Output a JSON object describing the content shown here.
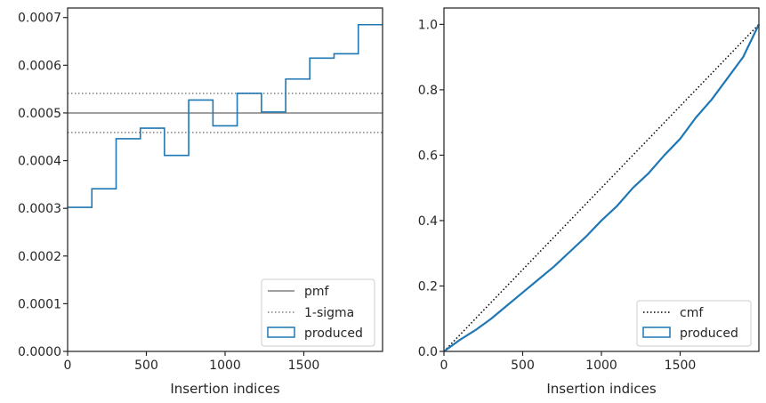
{
  "colors": {
    "series": "#1f77b4",
    "reference": "#808080",
    "cmf": "#000000",
    "axis": "#262626",
    "legend_border": "#cccccc"
  },
  "chart_data": [
    {
      "type": "step",
      "title": "",
      "xlabel": "Insertion indices",
      "ylabel": "",
      "xlim": [
        0,
        2000
      ],
      "ylim": [
        0,
        0.00072
      ],
      "xticks": [
        0,
        500,
        1000,
        1500
      ],
      "xtick_labels": [
        "0",
        "500",
        "1000",
        "1500"
      ],
      "yticks": [
        0,
        0.0001,
        0.0002,
        0.0003,
        0.0004,
        0.0005,
        0.0006,
        0.0007
      ],
      "ytick_labels": [
        "0.0000",
        "0.0001",
        "0.0002",
        "0.0003",
        "0.0004",
        "0.0005",
        "0.0006",
        "0.0007"
      ],
      "grid": false,
      "legend_position": "bottom-right",
      "bin_edges": [
        0,
        154,
        308,
        462,
        615,
        769,
        923,
        1077,
        1231,
        1385,
        1538,
        1692,
        1846,
        2000
      ],
      "produced": [
        0.000302,
        0.000341,
        0.000446,
        0.000468,
        0.000411,
        0.000527,
        0.000473,
        0.000541,
        0.000502,
        0.000571,
        0.000615,
        0.000624,
        0.000685
      ],
      "pmf": 0.0005,
      "sigma_upper": 0.000541,
      "sigma_lower": 0.000459,
      "legend": [
        "pmf",
        "1-sigma",
        "produced"
      ]
    },
    {
      "type": "line",
      "title": "",
      "xlabel": "Insertion indices",
      "ylabel": "",
      "xlim": [
        0,
        2000
      ],
      "ylim": [
        0,
        1.05
      ],
      "xticks": [
        0,
        500,
        1000,
        1500
      ],
      "xtick_labels": [
        "0",
        "500",
        "1000",
        "1500"
      ],
      "yticks": [
        0,
        0.2,
        0.4,
        0.6,
        0.8,
        1.0
      ],
      "ytick_labels": [
        "0.0",
        "0.2",
        "0.4",
        "0.6",
        "0.8",
        "1.0"
      ],
      "grid": false,
      "legend_position": "bottom-right",
      "cmf": {
        "x": [
          0,
          2000
        ],
        "y": [
          0,
          1.0
        ]
      },
      "produced": {
        "x": [
          0,
          100,
          200,
          300,
          400,
          500,
          600,
          700,
          800,
          900,
          1000,
          1100,
          1200,
          1300,
          1400,
          1500,
          1600,
          1700,
          1800,
          1900,
          2000
        ],
        "y": [
          0,
          0.035,
          0.065,
          0.1,
          0.14,
          0.18,
          0.22,
          0.26,
          0.305,
          0.35,
          0.4,
          0.445,
          0.5,
          0.545,
          0.6,
          0.65,
          0.715,
          0.77,
          0.835,
          0.9,
          1.0
        ]
      },
      "legend": [
        "cmf",
        "produced"
      ]
    }
  ]
}
